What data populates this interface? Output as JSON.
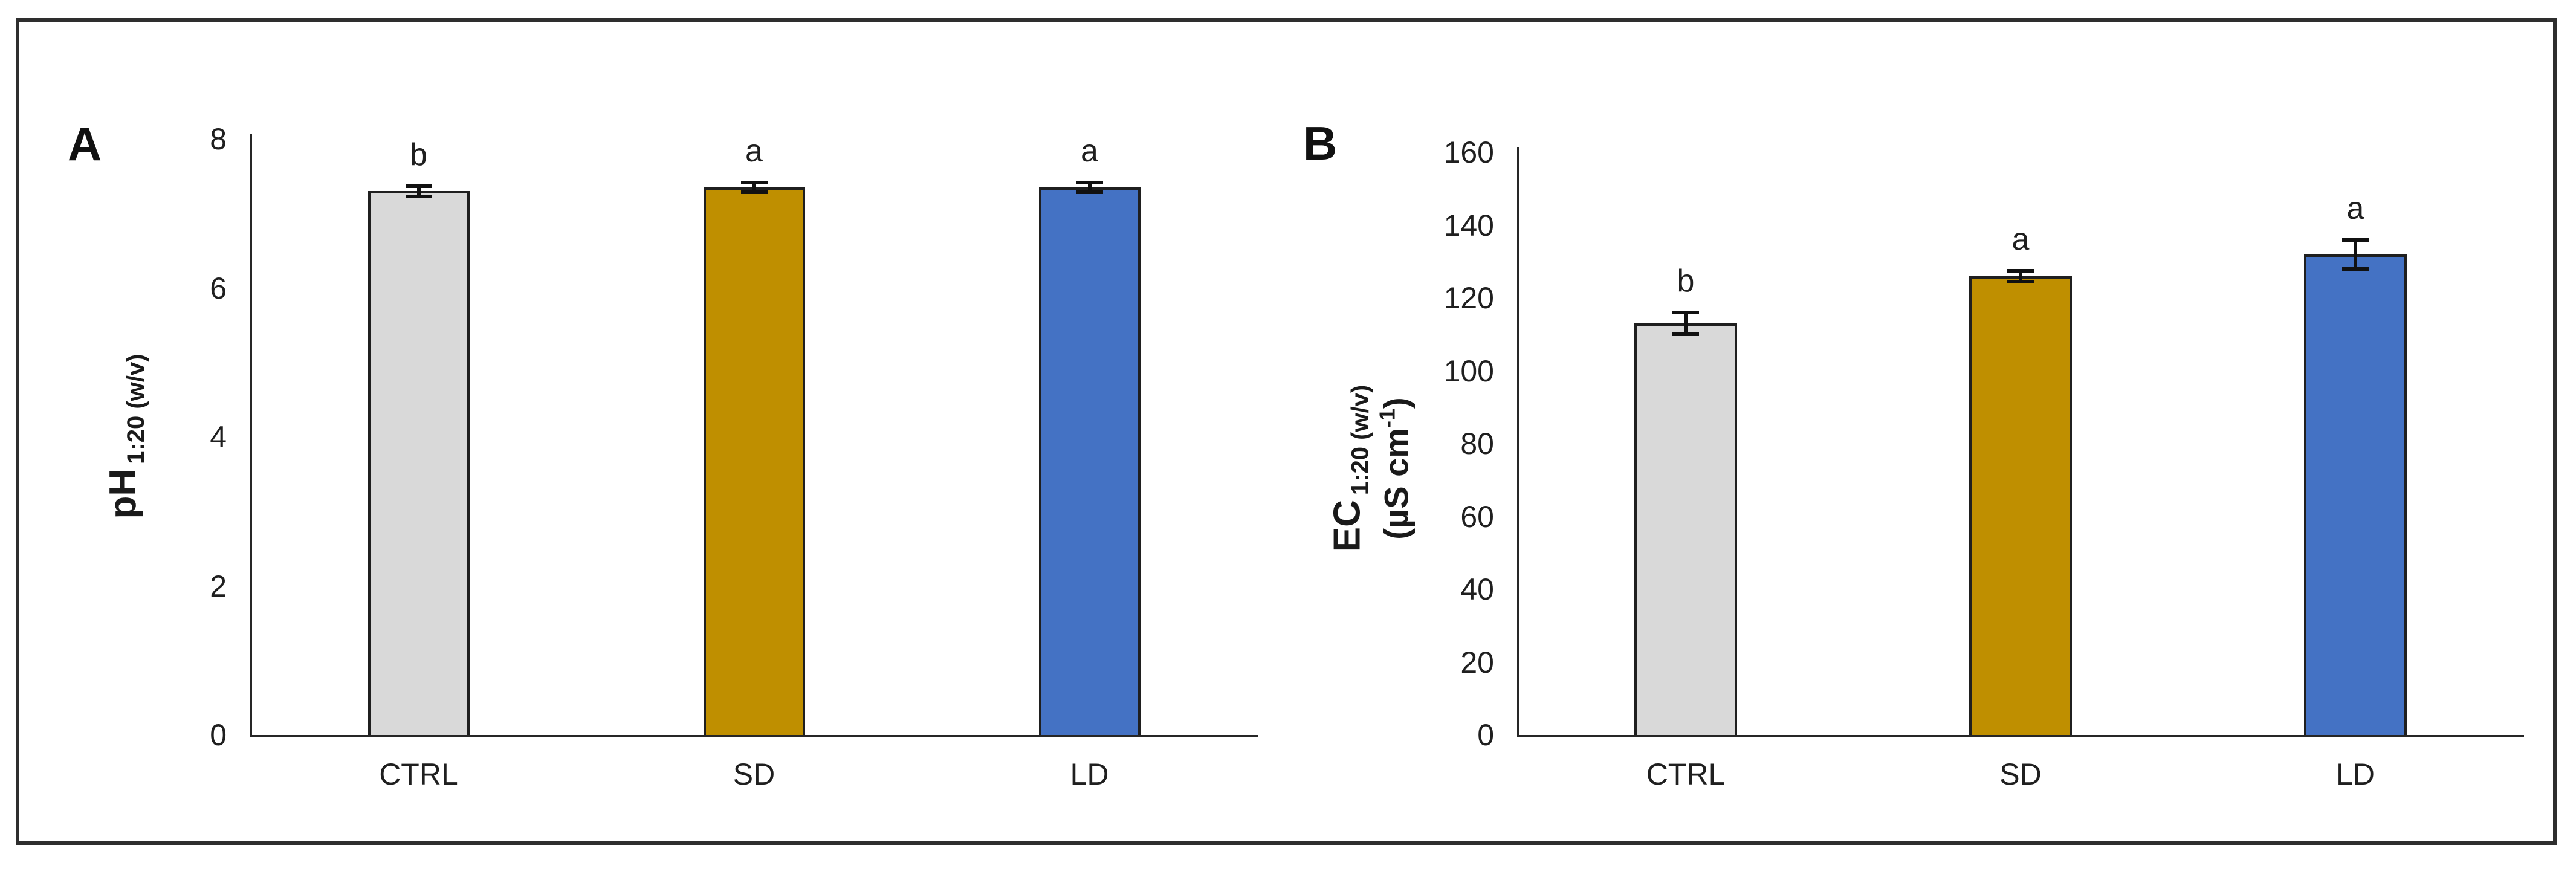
{
  "figure": {
    "background_color": "#ffffff",
    "border_color": "#2e2e2e",
    "axis_color": "#262626",
    "text_color": "#1f1f1f",
    "error_bar_color": "#111111",
    "bar_border_color": "#1f1f1f"
  },
  "chart_data": [
    {
      "type": "bar",
      "panel_label": "A",
      "categories": [
        "CTRL",
        "SD",
        "LD"
      ],
      "values": [
        7.3,
        7.35,
        7.35
      ],
      "errors": [
        0.07,
        0.05,
        0.06
      ],
      "sig_letters": [
        "b",
        "a",
        "a"
      ],
      "bar_colors": [
        "#d9d9d9",
        "#bf8f00",
        "#4472c4"
      ],
      "ylabel_main": "pH",
      "ylabel_sub": "1:20 (w/v)",
      "ylim": [
        0,
        8
      ],
      "yticks": [
        0,
        2,
        4,
        6,
        8
      ],
      "xlabel": "",
      "grid": false,
      "legend": false
    },
    {
      "type": "bar",
      "panel_label": "B",
      "categories": [
        "CTRL",
        "SD",
        "LD"
      ],
      "values": [
        113,
        126,
        132
      ],
      "errors": [
        3,
        1.5,
        4
      ],
      "sig_letters": [
        "b",
        "a",
        "a"
      ],
      "bar_colors": [
        "#d9d9d9",
        "#bf8f00",
        "#4472c4"
      ],
      "ylabel_main": "EC",
      "ylabel_sub": "1:20 (w/v)",
      "ylabel_unit_prefix": "(µS cm",
      "ylabel_unit_sup": "-1",
      "ylabel_unit_suffix": ")",
      "ylim": [
        0,
        160
      ],
      "yticks": [
        0,
        20,
        40,
        60,
        80,
        100,
        120,
        140,
        160
      ],
      "xlabel": "",
      "grid": false,
      "legend": false
    }
  ]
}
